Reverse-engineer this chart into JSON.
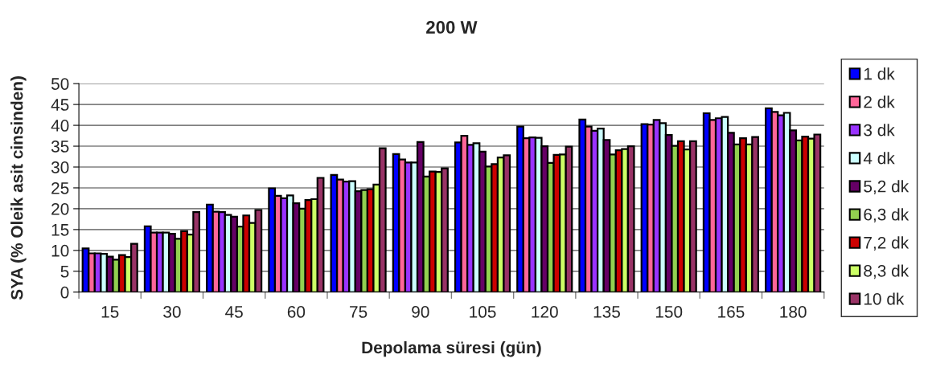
{
  "chart_data": {
    "type": "bar",
    "title": "200 W",
    "xlabel": "Depolama süresi (gün)",
    "ylabel": "SYA (% Oleik asit cinsinden)",
    "categories": [
      "15",
      "30",
      "45",
      "60",
      "75",
      "90",
      "105",
      "120",
      "135",
      "150",
      "165",
      "180"
    ],
    "series": [
      {
        "name": "1 dk",
        "color": "#0000ff",
        "values": [
          10.5,
          15.8,
          21.0,
          24.9,
          28.1,
          33.1,
          35.9,
          39.7,
          41.4,
          40.3,
          42.9,
          44.1
        ]
      },
      {
        "name": "2 dk",
        "color": "#ff6699",
        "values": [
          9.3,
          14.3,
          19.3,
          23.1,
          27.0,
          31.8,
          37.5,
          36.9,
          39.7,
          40.2,
          41.3,
          43.2
        ]
      },
      {
        "name": "3 dk",
        "color": "#9933ff",
        "values": [
          9.3,
          14.3,
          19.2,
          22.5,
          26.5,
          31.1,
          35.3,
          37.1,
          38.7,
          41.3,
          41.7,
          42.4
        ]
      },
      {
        "name": "4 dk",
        "color": "#ccffff",
        "values": [
          9.2,
          14.3,
          18.5,
          23.2,
          26.6,
          31.1,
          35.7,
          37.0,
          39.2,
          40.5,
          42.0,
          43.0
        ]
      },
      {
        "name": "5,2 dk",
        "color": "#660066",
        "values": [
          8.5,
          14.0,
          18.1,
          21.3,
          24.2,
          36.0,
          33.7,
          35.0,
          36.5,
          37.7,
          38.2,
          38.8
        ]
      },
      {
        "name": "6,3 dk",
        "color": "#92d050",
        "values": [
          7.8,
          12.8,
          15.7,
          20.0,
          24.5,
          27.7,
          30.1,
          31.0,
          33.0,
          35.1,
          35.4,
          36.4
        ]
      },
      {
        "name": "7,2 dk",
        "color": "#cc0000",
        "values": [
          8.9,
          14.6,
          18.4,
          22.1,
          24.7,
          28.9,
          30.7,
          32.9,
          34.0,
          36.2,
          36.9,
          37.3
        ]
      },
      {
        "name": "8,3 dk",
        "color": "#ccff66",
        "values": [
          8.4,
          13.8,
          16.6,
          22.3,
          25.8,
          28.8,
          32.3,
          33.0,
          34.3,
          34.2,
          35.4,
          36.8
        ]
      },
      {
        "name": "10 dk",
        "color": "#993366",
        "values": [
          11.6,
          19.2,
          19.7,
          27.4,
          34.5,
          29.7,
          32.8,
          34.9,
          35.0,
          36.2,
          37.2,
          37.8
        ]
      }
    ],
    "ylim": [
      0,
      50
    ],
    "yticks": [
      0,
      5,
      10,
      15,
      20,
      25,
      30,
      35,
      40,
      45,
      50
    ],
    "grid": "y",
    "legend": "right"
  }
}
